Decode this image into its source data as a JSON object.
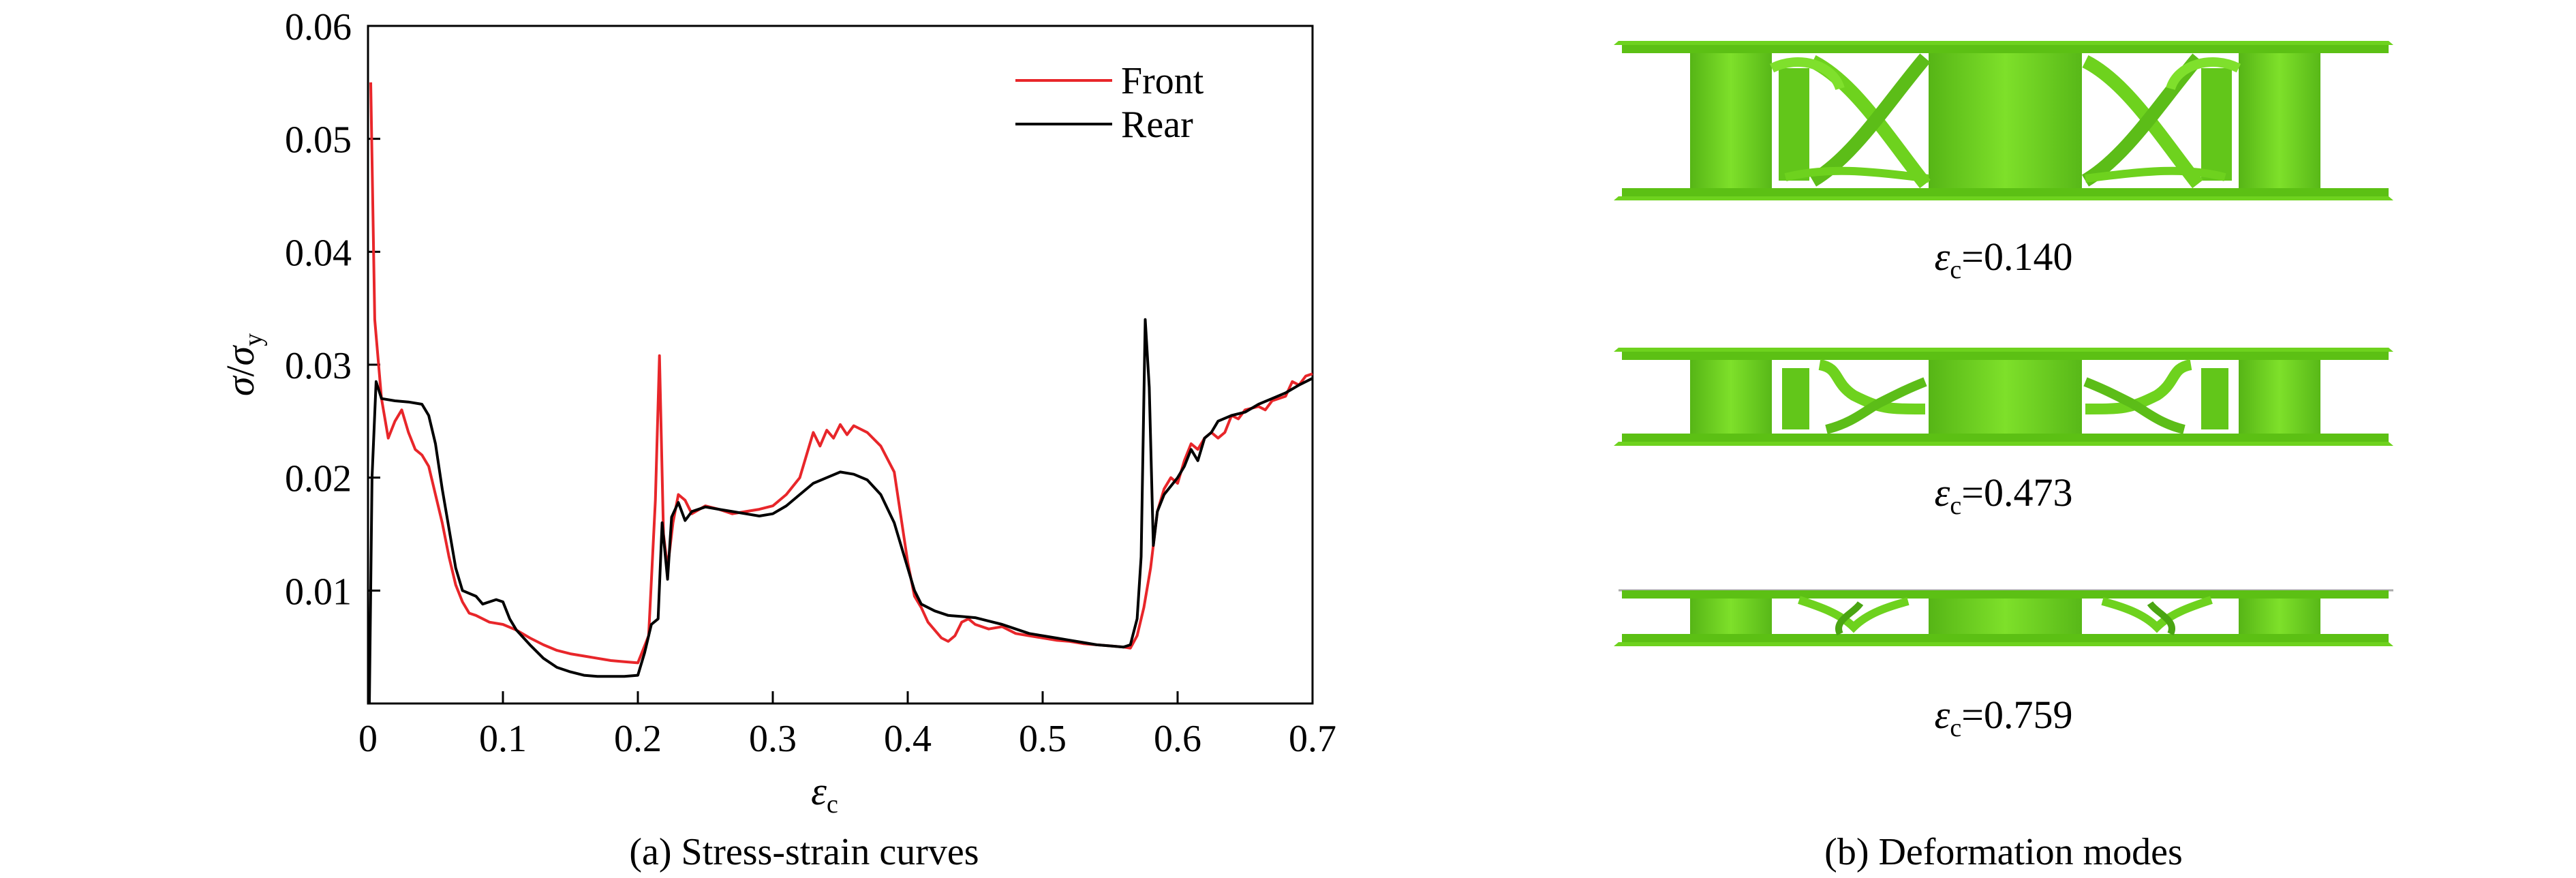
{
  "chart_data": {
    "type": "line",
    "xlim": [
      0,
      0.7
    ],
    "ylim": [
      0,
      0.06
    ],
    "xticks": [
      "0",
      "0.1",
      "0.2",
      "0.3",
      "0.4",
      "0.5",
      "0.6",
      "0.7"
    ],
    "yticks": [
      "0.01",
      "0.02",
      "0.03",
      "0.04",
      "0.05",
      "0.06"
    ],
    "grid": false,
    "legend_position": "top-right",
    "series": [
      {
        "name": "Front",
        "color": "#e8262a",
        "points": [
          [
            0.002,
            0.055
          ],
          [
            0.005,
            0.034
          ],
          [
            0.01,
            0.027
          ],
          [
            0.015,
            0.0235
          ],
          [
            0.02,
            0.025
          ],
          [
            0.025,
            0.026
          ],
          [
            0.03,
            0.024
          ],
          [
            0.035,
            0.0225
          ],
          [
            0.04,
            0.022
          ],
          [
            0.045,
            0.021
          ],
          [
            0.05,
            0.0185
          ],
          [
            0.055,
            0.016
          ],
          [
            0.06,
            0.013
          ],
          [
            0.065,
            0.0105
          ],
          [
            0.07,
            0.009
          ],
          [
            0.075,
            0.008
          ],
          [
            0.08,
            0.0078
          ],
          [
            0.09,
            0.0072
          ],
          [
            0.1,
            0.007
          ],
          [
            0.11,
            0.0065
          ],
          [
            0.12,
            0.0058
          ],
          [
            0.13,
            0.0052
          ],
          [
            0.14,
            0.0047
          ],
          [
            0.15,
            0.0044
          ],
          [
            0.16,
            0.0042
          ],
          [
            0.17,
            0.004
          ],
          [
            0.18,
            0.0038
          ],
          [
            0.19,
            0.0037
          ],
          [
            0.2,
            0.0036
          ],
          [
            0.208,
            0.006
          ],
          [
            0.213,
            0.018
          ],
          [
            0.216,
            0.0308
          ],
          [
            0.219,
            0.015
          ],
          [
            0.222,
            0.012
          ],
          [
            0.226,
            0.016
          ],
          [
            0.23,
            0.0185
          ],
          [
            0.235,
            0.018
          ],
          [
            0.24,
            0.0168
          ],
          [
            0.25,
            0.0175
          ],
          [
            0.26,
            0.0172
          ],
          [
            0.27,
            0.0168
          ],
          [
            0.28,
            0.017
          ],
          [
            0.29,
            0.0172
          ],
          [
            0.3,
            0.0175
          ],
          [
            0.31,
            0.0185
          ],
          [
            0.32,
            0.02
          ],
          [
            0.325,
            0.022
          ],
          [
            0.33,
            0.024
          ],
          [
            0.335,
            0.0228
          ],
          [
            0.34,
            0.0242
          ],
          [
            0.345,
            0.0235
          ],
          [
            0.35,
            0.0247
          ],
          [
            0.355,
            0.0238
          ],
          [
            0.36,
            0.0246
          ],
          [
            0.37,
            0.024
          ],
          [
            0.38,
            0.0228
          ],
          [
            0.39,
            0.0205
          ],
          [
            0.395,
            0.0165
          ],
          [
            0.4,
            0.0125
          ],
          [
            0.405,
            0.0095
          ],
          [
            0.41,
            0.0085
          ],
          [
            0.415,
            0.0072
          ],
          [
            0.42,
            0.0065
          ],
          [
            0.425,
            0.0058
          ],
          [
            0.43,
            0.0055
          ],
          [
            0.435,
            0.006
          ],
          [
            0.44,
            0.0072
          ],
          [
            0.445,
            0.0075
          ],
          [
            0.45,
            0.007
          ],
          [
            0.46,
            0.0066
          ],
          [
            0.47,
            0.0068
          ],
          [
            0.48,
            0.0062
          ],
          [
            0.49,
            0.006
          ],
          [
            0.5,
            0.0058
          ],
          [
            0.51,
            0.0056
          ],
          [
            0.52,
            0.0055
          ],
          [
            0.53,
            0.0053
          ],
          [
            0.54,
            0.0052
          ],
          [
            0.55,
            0.0051
          ],
          [
            0.56,
            0.005
          ],
          [
            0.565,
            0.0049
          ],
          [
            0.57,
            0.006
          ],
          [
            0.575,
            0.0085
          ],
          [
            0.58,
            0.012
          ],
          [
            0.585,
            0.017
          ],
          [
            0.59,
            0.019
          ],
          [
            0.595,
            0.02
          ],
          [
            0.6,
            0.0195
          ],
          [
            0.605,
            0.0215
          ],
          [
            0.61,
            0.023
          ],
          [
            0.615,
            0.0225
          ],
          [
            0.62,
            0.0235
          ],
          [
            0.625,
            0.024
          ],
          [
            0.63,
            0.0235
          ],
          [
            0.635,
            0.024
          ],
          [
            0.64,
            0.0255
          ],
          [
            0.645,
            0.0252
          ],
          [
            0.65,
            0.026
          ],
          [
            0.66,
            0.0263
          ],
          [
            0.665,
            0.026
          ],
          [
            0.67,
            0.0268
          ],
          [
            0.68,
            0.0272
          ],
          [
            0.685,
            0.0285
          ],
          [
            0.69,
            0.0282
          ],
          [
            0.695,
            0.029
          ],
          [
            0.7,
            0.0292
          ]
        ]
      },
      {
        "name": "Rear",
        "color": "#000000",
        "points": [
          [
            0.001,
            0.0
          ],
          [
            0.003,
            0.02
          ],
          [
            0.006,
            0.0285
          ],
          [
            0.01,
            0.027
          ],
          [
            0.02,
            0.0268
          ],
          [
            0.03,
            0.0267
          ],
          [
            0.04,
            0.0265
          ],
          [
            0.045,
            0.0255
          ],
          [
            0.05,
            0.023
          ],
          [
            0.055,
            0.019
          ],
          [
            0.06,
            0.0155
          ],
          [
            0.065,
            0.012
          ],
          [
            0.07,
            0.01
          ],
          [
            0.08,
            0.0095
          ],
          [
            0.085,
            0.0088
          ],
          [
            0.09,
            0.009
          ],
          [
            0.095,
            0.0092
          ],
          [
            0.1,
            0.009
          ],
          [
            0.105,
            0.0075
          ],
          [
            0.11,
            0.0065
          ],
          [
            0.12,
            0.0052
          ],
          [
            0.13,
            0.004
          ],
          [
            0.14,
            0.0032
          ],
          [
            0.15,
            0.0028
          ],
          [
            0.16,
            0.0025
          ],
          [
            0.17,
            0.0024
          ],
          [
            0.18,
            0.0024
          ],
          [
            0.19,
            0.0024
          ],
          [
            0.2,
            0.0025
          ],
          [
            0.205,
            0.0045
          ],
          [
            0.21,
            0.007
          ],
          [
            0.215,
            0.0075
          ],
          [
            0.218,
            0.016
          ],
          [
            0.222,
            0.011
          ],
          [
            0.225,
            0.0165
          ],
          [
            0.23,
            0.0178
          ],
          [
            0.235,
            0.0162
          ],
          [
            0.24,
            0.017
          ],
          [
            0.25,
            0.0174
          ],
          [
            0.26,
            0.0172
          ],
          [
            0.27,
            0.017
          ],
          [
            0.28,
            0.0168
          ],
          [
            0.29,
            0.0166
          ],
          [
            0.3,
            0.0168
          ],
          [
            0.31,
            0.0175
          ],
          [
            0.32,
            0.0185
          ],
          [
            0.33,
            0.0195
          ],
          [
            0.34,
            0.02
          ],
          [
            0.35,
            0.0205
          ],
          [
            0.36,
            0.0203
          ],
          [
            0.37,
            0.0198
          ],
          [
            0.38,
            0.0185
          ],
          [
            0.39,
            0.016
          ],
          [
            0.4,
            0.012
          ],
          [
            0.405,
            0.01
          ],
          [
            0.41,
            0.0088
          ],
          [
            0.42,
            0.0082
          ],
          [
            0.43,
            0.0078
          ],
          [
            0.44,
            0.0077
          ],
          [
            0.45,
            0.0076
          ],
          [
            0.46,
            0.0073
          ],
          [
            0.47,
            0.007
          ],
          [
            0.48,
            0.0066
          ],
          [
            0.49,
            0.0062
          ],
          [
            0.5,
            0.006
          ],
          [
            0.51,
            0.0058
          ],
          [
            0.52,
            0.0056
          ],
          [
            0.53,
            0.0054
          ],
          [
            0.54,
            0.0052
          ],
          [
            0.55,
            0.0051
          ],
          [
            0.56,
            0.005
          ],
          [
            0.565,
            0.0052
          ],
          [
            0.57,
            0.0075
          ],
          [
            0.573,
            0.013
          ],
          [
            0.576,
            0.034
          ],
          [
            0.579,
            0.028
          ],
          [
            0.582,
            0.014
          ],
          [
            0.585,
            0.017
          ],
          [
            0.59,
            0.0185
          ],
          [
            0.6,
            0.02
          ],
          [
            0.605,
            0.021
          ],
          [
            0.61,
            0.0225
          ],
          [
            0.615,
            0.0215
          ],
          [
            0.62,
            0.0235
          ],
          [
            0.625,
            0.024
          ],
          [
            0.63,
            0.025
          ],
          [
            0.64,
            0.0255
          ],
          [
            0.65,
            0.0258
          ],
          [
            0.66,
            0.0265
          ],
          [
            0.67,
            0.027
          ],
          [
            0.68,
            0.0275
          ],
          [
            0.69,
            0.0282
          ],
          [
            0.7,
            0.0288
          ]
        ]
      }
    ]
  },
  "figure": {
    "caption_a": "(a) Stress-strain curves",
    "caption_b": "(b) Deformation modes",
    "deformations": [
      {
        "strain_symbol": "ε",
        "strain_subscript": "c",
        "value": "=0.140"
      },
      {
        "strain_symbol": "ε",
        "strain_subscript": "c",
        "value": "=0.473"
      },
      {
        "strain_symbol": "ε",
        "strain_subscript": "c",
        "value": "=0.759"
      }
    ],
    "model_color": "#6ed21e",
    "model_dark": "#4aa512",
    "model_light": "#8ee83c"
  }
}
